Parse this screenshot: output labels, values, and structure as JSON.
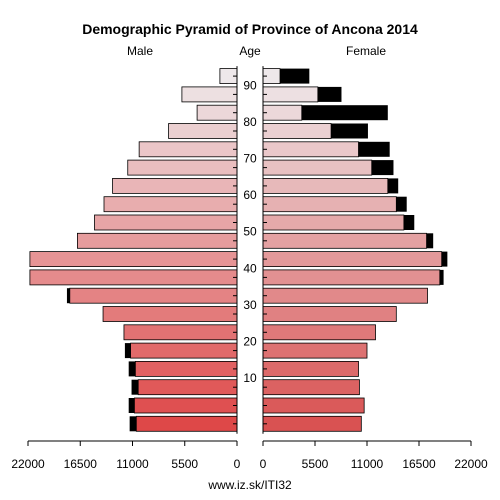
{
  "chart_data": {
    "type": "bar",
    "title": "Demographic Pyramid of Province of Ancona 2014",
    "left_label": "Male",
    "center_label": "Age",
    "right_label": "Female",
    "source": "www.iz.sk/ITI32",
    "age_groups": [
      "0-4",
      "5-9",
      "10-14",
      "15-19",
      "20-24",
      "25-29",
      "30-34",
      "35-39",
      "40-44",
      "45-49",
      "50-54",
      "55-59",
      "60-64",
      "65-69",
      "70-74",
      "75-79",
      "80-84",
      "85-89",
      "90-94",
      "95+"
    ],
    "age_ticks": [
      10,
      20,
      30,
      40,
      50,
      60,
      70,
      80,
      90
    ],
    "x_ticks_male": [
      "22000",
      "16500",
      "11000",
      "5500",
      "0"
    ],
    "x_ticks_female": [
      "0",
      "5500",
      "11000",
      "16500",
      "22000"
    ],
    "xlim": [
      0,
      22000
    ],
    "series": [
      {
        "name": "Male",
        "values": [
          10600,
          10800,
          10400,
          10700,
          11200,
          11900,
          14100,
          17600,
          21800,
          21800,
          16800,
          15000,
          14000,
          13100,
          11500,
          10300,
          7200,
          4200,
          5800,
          1800
        ],
        "excess": [
          700,
          600,
          700,
          700,
          600,
          0,
          0,
          300,
          0,
          0,
          0,
          0,
          0,
          0,
          0,
          0,
          0,
          0,
          0,
          0
        ]
      },
      {
        "name": "Female",
        "values": [
          10400,
          10700,
          10200,
          10100,
          11000,
          11900,
          14100,
          17400,
          18700,
          18900,
          17300,
          14900,
          14100,
          13200,
          11500,
          10100,
          7200,
          4100,
          5800,
          1800
        ],
        "excess": [
          0,
          0,
          0,
          0,
          0,
          0,
          0,
          0,
          400,
          600,
          700,
          1100,
          1100,
          1100,
          2300,
          3300,
          3900,
          9100,
          2500,
          3100
        ]
      }
    ]
  }
}
